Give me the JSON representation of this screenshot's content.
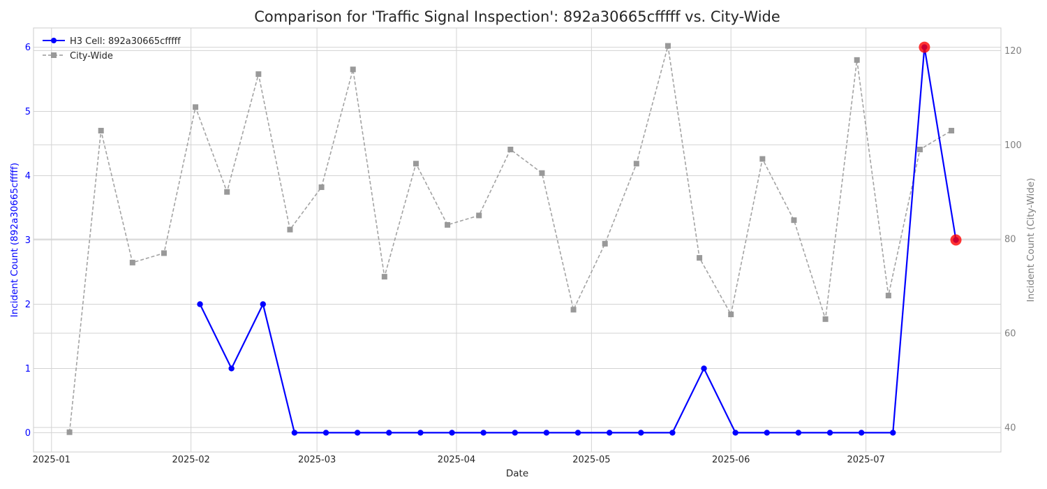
{
  "chart_data": {
    "type": "line",
    "title": "Comparison for 'Traffic Signal Inspection': 892a30665cfffff vs. City-Wide",
    "xlabel": "Date",
    "ylabel_left": "Incident Count (892a30665cfffff)",
    "ylabel_right": "Incident Count (City-Wide)",
    "x_ticks": [
      "2025-01",
      "2025-02",
      "2025-03",
      "2025-04",
      "2025-05",
      "2025-06",
      "2025-07"
    ],
    "x_tick_dates": [
      "2025-01-01",
      "2025-02-01",
      "2025-03-01",
      "2025-04-01",
      "2025-05-01",
      "2025-06-01",
      "2025-07-01"
    ],
    "y_left_ticks": [
      0,
      1,
      2,
      3,
      4,
      5,
      6
    ],
    "y_right_ticks": [
      40,
      60,
      80,
      100,
      120
    ],
    "ylim_left": [
      -0.3,
      6.3
    ],
    "ylim_right": [
      34.8,
      124.8
    ],
    "xlim": [
      "2024-12-28",
      "2025-07-31"
    ],
    "grid": true,
    "legend_position": "top-left",
    "series": [
      {
        "name": "H3 Cell: 892a30665cfffff",
        "axis": "left",
        "color": "#0000ff",
        "marker": "circle",
        "line_style": "solid",
        "points": [
          {
            "x": "2025-02-03",
            "y": 2
          },
          {
            "x": "2025-02-10",
            "y": 1
          },
          {
            "x": "2025-02-17",
            "y": 2
          },
          {
            "x": "2025-02-24",
            "y": 0
          },
          {
            "x": "2025-03-03",
            "y": 0
          },
          {
            "x": "2025-03-10",
            "y": 0
          },
          {
            "x": "2025-03-17",
            "y": 0
          },
          {
            "x": "2025-03-24",
            "y": 0
          },
          {
            "x": "2025-03-31",
            "y": 0
          },
          {
            "x": "2025-04-07",
            "y": 0
          },
          {
            "x": "2025-04-14",
            "y": 0
          },
          {
            "x": "2025-04-21",
            "y": 0
          },
          {
            "x": "2025-04-28",
            "y": 0
          },
          {
            "x": "2025-05-05",
            "y": 0
          },
          {
            "x": "2025-05-12",
            "y": 0
          },
          {
            "x": "2025-05-19",
            "y": 0
          },
          {
            "x": "2025-05-26",
            "y": 1
          },
          {
            "x": "2025-06-02",
            "y": 0
          },
          {
            "x": "2025-06-09",
            "y": 0
          },
          {
            "x": "2025-06-16",
            "y": 0
          },
          {
            "x": "2025-06-23",
            "y": 0
          },
          {
            "x": "2025-06-30",
            "y": 0
          },
          {
            "x": "2025-07-07",
            "y": 0
          },
          {
            "x": "2025-07-14",
            "y": 6
          },
          {
            "x": "2025-07-21",
            "y": 3
          }
        ],
        "highlighted": [
          {
            "x": "2025-07-14",
            "y": 6
          },
          {
            "x": "2025-07-21",
            "y": 3
          }
        ],
        "highlight_color": "#ff0000"
      },
      {
        "name": "City-Wide",
        "axis": "right",
        "color": "#999999",
        "marker": "square",
        "line_style": "dashed",
        "points": [
          {
            "x": "2025-01-05",
            "y": 39
          },
          {
            "x": "2025-01-12",
            "y": 103
          },
          {
            "x": "2025-01-19",
            "y": 75
          },
          {
            "x": "2025-01-26",
            "y": 77
          },
          {
            "x": "2025-02-02",
            "y": 108
          },
          {
            "x": "2025-02-09",
            "y": 90
          },
          {
            "x": "2025-02-16",
            "y": 115
          },
          {
            "x": "2025-02-23",
            "y": 82
          },
          {
            "x": "2025-03-02",
            "y": 91
          },
          {
            "x": "2025-03-09",
            "y": 116
          },
          {
            "x": "2025-03-16",
            "y": 72
          },
          {
            "x": "2025-03-23",
            "y": 96
          },
          {
            "x": "2025-03-30",
            "y": 83
          },
          {
            "x": "2025-04-06",
            "y": 85
          },
          {
            "x": "2025-04-13",
            "y": 99
          },
          {
            "x": "2025-04-20",
            "y": 94
          },
          {
            "x": "2025-04-27",
            "y": 65
          },
          {
            "x": "2025-05-04",
            "y": 79
          },
          {
            "x": "2025-05-11",
            "y": 96
          },
          {
            "x": "2025-05-18",
            "y": 121
          },
          {
            "x": "2025-05-25",
            "y": 76
          },
          {
            "x": "2025-06-01",
            "y": 64
          },
          {
            "x": "2025-06-08",
            "y": 97
          },
          {
            "x": "2025-06-15",
            "y": 84
          },
          {
            "x": "2025-06-22",
            "y": 63
          },
          {
            "x": "2025-06-29",
            "y": 118
          },
          {
            "x": "2025-07-06",
            "y": 68
          },
          {
            "x": "2025-07-13",
            "y": 99
          },
          {
            "x": "2025-07-20",
            "y": 103
          }
        ]
      }
    ]
  }
}
